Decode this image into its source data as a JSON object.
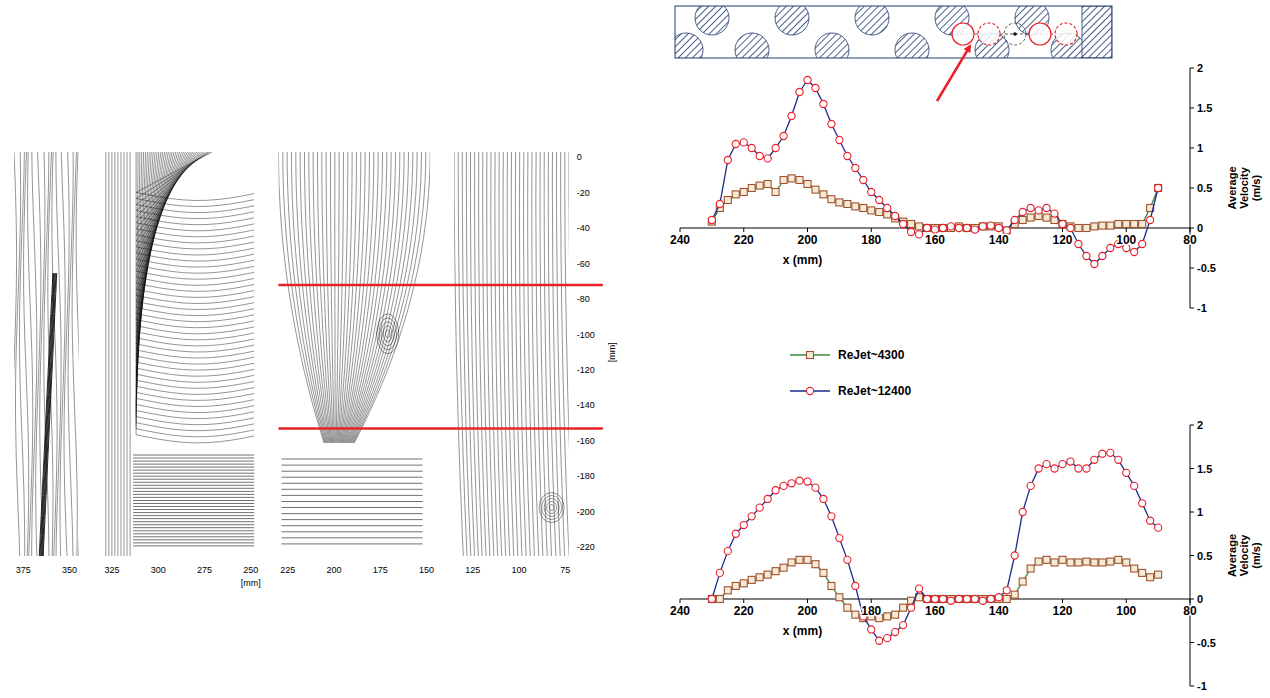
{
  "streamlines": {
    "panels": [
      {
        "xlim": [
          380,
          345
        ],
        "xticks": [
          375,
          350
        ]
      },
      {
        "xlim": [
          330,
          248
        ],
        "xticks": [
          325,
          300,
          275,
          250
        ],
        "x_label": "[mm]"
      },
      {
        "xlim": [
          230,
          148
        ],
        "xticks": [
          225,
          200,
          175,
          150
        ]
      },
      {
        "xlim": [
          135,
          73
        ],
        "xticks": [
          125,
          100,
          75
        ]
      }
    ],
    "ylim": [
      3,
      -225
    ],
    "yticks": [
      0,
      -20,
      -40,
      -60,
      -80,
      -100,
      -120,
      -140,
      -160,
      -180,
      -200,
      -220
    ],
    "y_label": "[mm]",
    "section_lines": [
      -72,
      -153
    ]
  },
  "chart_data": [
    {
      "type": "line",
      "x_label": "x (mm)",
      "y_label": "Average Velocity (m/s)",
      "xlim": [
        240,
        80
      ],
      "ylim": [
        -1,
        2
      ],
      "xticks": [
        240,
        220,
        200,
        180,
        160,
        140,
        120,
        100,
        80
      ],
      "yticks": [
        -1,
        -0.5,
        0,
        0.5,
        1,
        1.5,
        2
      ],
      "legend": "bottom",
      "x": [
        230,
        227.5,
        225,
        222.5,
        220,
        217.5,
        215,
        212.5,
        210,
        207.5,
        205,
        202.5,
        200,
        197.5,
        195,
        192.5,
        190,
        187.5,
        185,
        182.5,
        180,
        177.5,
        175,
        172.5,
        170,
        167.5,
        165,
        162.5,
        160,
        157.5,
        155,
        152.5,
        150,
        147.5,
        145,
        142.5,
        140,
        137.5,
        135,
        132.5,
        130,
        127.5,
        125,
        122.5,
        120,
        117.5,
        115,
        112.5,
        110,
        107.5,
        105,
        102.5,
        100,
        97.5,
        95,
        92.5,
        90
      ],
      "series": [
        {
          "name": "ReJet~4300",
          "color": "#3a8a3a",
          "marker": "square",
          "values": [
            0.08,
            0.25,
            0.35,
            0.42,
            0.45,
            0.5,
            0.53,
            0.55,
            0.45,
            0.6,
            0.62,
            0.6,
            0.55,
            0.48,
            0.42,
            0.36,
            0.32,
            0.3,
            0.27,
            0.25,
            0.22,
            0.2,
            0.17,
            0.12,
            0.08,
            0.05,
            0.02,
            0.0,
            0.0,
            0.0,
            0.0,
            0.02,
            0.0,
            0.0,
            0.02,
            0.02,
            0.02,
            -0.03,
            0.05,
            0.1,
            0.13,
            0.15,
            0.13,
            0.1,
            0.05,
            0.02,
            0.0,
            0.0,
            0.02,
            0.03,
            0.03,
            0.05,
            0.05,
            0.05,
            0.05,
            0.25,
            0.5
          ]
        },
        {
          "name": "ReJet~12400",
          "color": "#1a2a8a",
          "marker": "circle",
          "values": [
            0.1,
            0.3,
            0.85,
            1.05,
            1.07,
            1.0,
            0.9,
            0.87,
            1.0,
            1.15,
            1.4,
            1.7,
            1.85,
            1.75,
            1.55,
            1.3,
            1.1,
            0.9,
            0.75,
            0.6,
            0.45,
            0.35,
            0.25,
            0.15,
            0.05,
            -0.05,
            -0.08,
            0.0,
            -0.02,
            0.0,
            0.02,
            0.0,
            0.0,
            -0.02,
            0.02,
            0.03,
            0.0,
            -0.03,
            0.1,
            0.2,
            0.25,
            0.22,
            0.25,
            0.18,
            0.05,
            0.0,
            -0.2,
            -0.35,
            -0.45,
            -0.35,
            -0.25,
            -0.2,
            -0.25,
            -0.3,
            -0.2,
            0.1,
            0.5
          ]
        }
      ]
    },
    {
      "type": "line",
      "x_label": "x (mm)",
      "y_label": "Average Velocity (m/s)",
      "xlim": [
        240,
        80
      ],
      "ylim": [
        -1,
        2
      ],
      "xticks": [
        240,
        220,
        200,
        180,
        160,
        140,
        120,
        100,
        80
      ],
      "yticks": [
        -1,
        -0.5,
        0,
        0.5,
        1,
        1.5,
        2
      ],
      "x": [
        230,
        227.5,
        225,
        222.5,
        220,
        217.5,
        215,
        212.5,
        210,
        207.5,
        205,
        202.5,
        200,
        197.5,
        195,
        192.5,
        190,
        187.5,
        185,
        182.5,
        180,
        177.5,
        175,
        172.5,
        170,
        167.5,
        165,
        162.5,
        160,
        157.5,
        155,
        152.5,
        150,
        147.5,
        145,
        142.5,
        140,
        137.5,
        135,
        132.5,
        130,
        127.5,
        125,
        122.5,
        120,
        117.5,
        115,
        112.5,
        110,
        107.5,
        105,
        102.5,
        100,
        97.5,
        95,
        92.5,
        90
      ],
      "series": [
        {
          "color": "#3a8a3a",
          "marker": "square",
          "values": [
            0.0,
            0.0,
            0.1,
            0.15,
            0.18,
            0.22,
            0.25,
            0.28,
            0.32,
            0.36,
            0.42,
            0.45,
            0.45,
            0.4,
            0.3,
            0.15,
            0.02,
            -0.1,
            -0.18,
            -0.22,
            -0.2,
            -0.22,
            -0.2,
            -0.18,
            -0.1,
            -0.02,
            0.02,
            0.0,
            0.0,
            0.0,
            0.0,
            0.0,
            0.0,
            0.0,
            0.0,
            0.0,
            0.0,
            0.0,
            0.05,
            0.2,
            0.35,
            0.43,
            0.45,
            0.42,
            0.45,
            0.42,
            0.42,
            0.43,
            0.42,
            0.42,
            0.43,
            0.45,
            0.42,
            0.35,
            0.3,
            0.25,
            0.28
          ]
        },
        {
          "color": "#1a2a8a",
          "marker": "circle",
          "values": [
            0.0,
            0.3,
            0.55,
            0.75,
            0.85,
            0.95,
            1.05,
            1.15,
            1.25,
            1.3,
            1.33,
            1.36,
            1.35,
            1.28,
            1.15,
            0.95,
            0.7,
            0.45,
            0.15,
            -0.2,
            -0.35,
            -0.48,
            -0.45,
            -0.38,
            -0.3,
            -0.1,
            0.12,
            0.0,
            0.0,
            0.0,
            -0.02,
            0.0,
            0.0,
            0.0,
            -0.02,
            0.0,
            0.02,
            0.1,
            0.5,
            1.0,
            1.3,
            1.5,
            1.55,
            1.5,
            1.55,
            1.58,
            1.5,
            1.5,
            1.6,
            1.67,
            1.68,
            1.6,
            1.45,
            1.3,
            1.1,
            0.9,
            0.82
          ]
        }
      ]
    }
  ]
}
